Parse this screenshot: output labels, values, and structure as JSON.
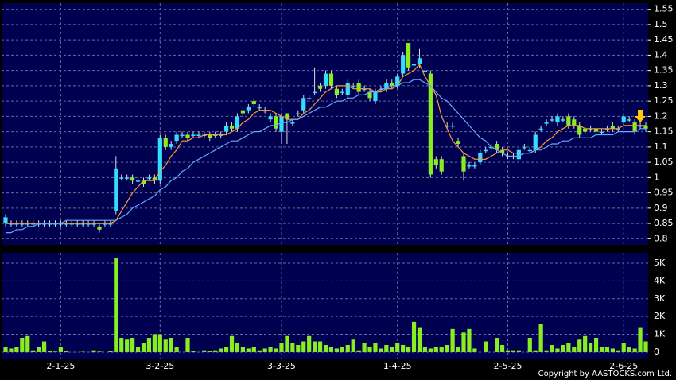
{
  "chart_data": {
    "type": "candlestick",
    "categories": [
      null,
      null,
      null,
      null,
      null,
      null,
      null,
      null,
      null,
      null,
      "2-1-25",
      null,
      null,
      null,
      null,
      null,
      null,
      null,
      null,
      null,
      null,
      null,
      null,
      null,
      null,
      null,
      null,
      null,
      "3-2-25",
      null,
      null,
      null,
      null,
      null,
      null,
      null,
      null,
      null,
      null,
      null,
      null,
      null,
      null,
      null,
      null,
      null,
      null,
      null,
      null,
      null,
      "3-3-25",
      null,
      null,
      null,
      null,
      null,
      null,
      null,
      null,
      null,
      null,
      null,
      null,
      null,
      null,
      null,
      null,
      null,
      null,
      null,
      null,
      "1-4-25",
      null,
      null,
      null,
      null,
      null,
      null,
      null,
      null,
      null,
      null,
      null,
      null,
      null,
      null,
      null,
      null,
      null,
      null,
      null,
      "2-5-25",
      null,
      null,
      null,
      null,
      null,
      null,
      null,
      null,
      null,
      null,
      null,
      null,
      null,
      null,
      null,
      null,
      null,
      null,
      null,
      null,
      "2-6-25",
      null,
      null,
      null,
      null
    ],
    "open": [
      0.85,
      0.85,
      0.85,
      0.85,
      0.85,
      0.85,
      0.85,
      0.85,
      0.85,
      0.85,
      0.85,
      0.85,
      0.85,
      0.85,
      0.85,
      0.85,
      0.85,
      0.84,
      0.85,
      0.85,
      0.89,
      1.0,
      1.0,
      1.0,
      0.99,
      0.99,
      1.0,
      1.0,
      0.99,
      1.13,
      1.1,
      1.12,
      1.14,
      1.14,
      1.14,
      1.14,
      1.14,
      1.14,
      1.14,
      1.14,
      1.15,
      1.17,
      1.16,
      1.22,
      1.22,
      1.25,
      1.23,
      1.22,
      1.19,
      1.2,
      1.15,
      1.21,
      1.18,
      1.21,
      1.22,
      1.26,
      1.28,
      1.3,
      1.3,
      1.34,
      1.29,
      1.28,
      1.27,
      1.3,
      1.31,
      1.29,
      1.28,
      1.25,
      1.29,
      1.29,
      1.31,
      1.3,
      1.34,
      1.44,
      1.37,
      1.37,
      1.35,
      1.34,
      1.06,
      1.06,
      1.17,
      1.17,
      1.12,
      1.07,
      1.04,
      1.04,
      1.05,
      1.09,
      1.1,
      1.11,
      1.09,
      1.07,
      1.07,
      1.06,
      1.1,
      1.09,
      1.09,
      1.16,
      1.18,
      1.19,
      1.18,
      1.19,
      1.2,
      1.19,
      1.17,
      1.16,
      1.16,
      1.16,
      1.15,
      1.16,
      1.17,
      1.16,
      1.18,
      1.19,
      1.18,
      1.17,
      1.17
    ],
    "high": [
      0.88,
      0.86,
      0.86,
      0.86,
      0.86,
      0.86,
      0.86,
      0.86,
      0.86,
      0.86,
      0.86,
      0.86,
      0.86,
      0.86,
      0.86,
      0.86,
      0.86,
      0.85,
      0.86,
      0.86,
      1.07,
      1.01,
      1.01,
      1.01,
      1.0,
      1.0,
      1.01,
      1.01,
      1.14,
      1.14,
      1.12,
      1.15,
      1.15,
      1.15,
      1.15,
      1.15,
      1.15,
      1.15,
      1.15,
      1.15,
      1.18,
      1.18,
      1.21,
      1.23,
      1.24,
      1.26,
      1.24,
      1.23,
      1.21,
      1.21,
      1.21,
      1.21,
      1.19,
      1.22,
      1.27,
      1.27,
      1.36,
      1.31,
      1.35,
      1.35,
      1.3,
      1.29,
      1.32,
      1.31,
      1.32,
      1.3,
      1.29,
      1.29,
      1.3,
      1.32,
      1.32,
      1.34,
      1.41,
      1.44,
      1.38,
      1.42,
      1.36,
      1.35,
      1.07,
      1.07,
      1.18,
      1.18,
      1.13,
      1.08,
      1.05,
      1.05,
      1.09,
      1.1,
      1.11,
      1.12,
      1.1,
      1.08,
      1.08,
      1.1,
      1.11,
      1.1,
      1.15,
      1.17,
      1.19,
      1.2,
      1.21,
      1.2,
      1.21,
      1.2,
      1.18,
      1.17,
      1.17,
      1.17,
      1.16,
      1.17,
      1.18,
      1.17,
      1.21,
      1.2,
      1.19,
      1.18,
      1.18
    ],
    "low": [
      0.84,
      0.84,
      0.84,
      0.84,
      0.84,
      0.84,
      0.84,
      0.84,
      0.84,
      0.84,
      0.84,
      0.84,
      0.84,
      0.84,
      0.84,
      0.84,
      0.84,
      0.82,
      0.84,
      0.84,
      0.88,
      0.99,
      0.99,
      0.98,
      0.98,
      0.97,
      0.99,
      0.98,
      0.98,
      1.09,
      1.09,
      1.11,
      1.13,
      1.12,
      1.13,
      1.13,
      1.13,
      1.12,
      1.13,
      1.13,
      1.14,
      1.15,
      1.15,
      1.2,
      1.21,
      1.23,
      1.22,
      1.21,
      1.18,
      1.15,
      1.11,
      1.11,
      1.17,
      1.2,
      1.21,
      1.25,
      1.27,
      1.28,
      1.29,
      1.29,
      1.26,
      1.27,
      1.26,
      1.29,
      1.27,
      1.28,
      1.25,
      1.24,
      1.28,
      1.28,
      1.29,
      1.29,
      1.33,
      1.35,
      1.36,
      1.36,
      1.34,
      1.0,
      1.03,
      1.01,
      1.16,
      1.16,
      1.1,
      0.99,
      1.03,
      1.03,
      1.04,
      1.08,
      1.09,
      1.08,
      1.07,
      1.06,
      1.06,
      1.05,
      1.09,
      1.08,
      1.08,
      1.15,
      1.17,
      1.18,
      1.17,
      1.18,
      1.16,
      1.16,
      1.13,
      1.14,
      1.15,
      1.14,
      1.14,
      1.15,
      1.15,
      1.15,
      1.17,
      1.18,
      1.14,
      1.16,
      1.15
    ],
    "close": [
      0.87,
      0.85,
      0.85,
      0.85,
      0.85,
      0.85,
      0.85,
      0.85,
      0.85,
      0.85,
      0.85,
      0.85,
      0.85,
      0.85,
      0.85,
      0.85,
      0.85,
      0.83,
      0.85,
      0.85,
      1.03,
      1.0,
      1.0,
      0.99,
      0.99,
      0.98,
      1.0,
      0.99,
      1.13,
      1.1,
      1.11,
      1.14,
      1.14,
      1.13,
      1.14,
      1.14,
      1.14,
      1.13,
      1.14,
      1.14,
      1.17,
      1.16,
      1.2,
      1.21,
      1.23,
      1.24,
      1.23,
      1.22,
      1.2,
      1.16,
      1.2,
      1.19,
      1.18,
      1.21,
      1.26,
      1.26,
      1.28,
      1.29,
      1.34,
      1.3,
      1.27,
      1.28,
      1.31,
      1.3,
      1.28,
      1.29,
      1.26,
      1.28,
      1.29,
      1.31,
      1.3,
      1.33,
      1.4,
      1.36,
      1.37,
      1.39,
      1.35,
      1.01,
      1.04,
      1.02,
      1.17,
      1.17,
      1.11,
      1.02,
      1.04,
      1.04,
      1.08,
      1.09,
      1.1,
      1.09,
      1.08,
      1.07,
      1.07,
      1.09,
      1.1,
      1.09,
      1.14,
      1.16,
      1.18,
      1.19,
      1.2,
      1.19,
      1.17,
      1.17,
      1.14,
      1.15,
      1.16,
      1.15,
      1.15,
      1.16,
      1.16,
      1.16,
      1.2,
      1.19,
      1.15,
      1.17,
      1.16
    ],
    "volume": [
      300,
      200,
      300,
      800,
      900,
      100,
      300,
      600,
      50,
      30,
      300,
      50,
      0,
      0,
      20,
      0,
      100,
      30,
      0,
      80,
      5300,
      800,
      700,
      800,
      300,
      500,
      800,
      1000,
      1000,
      700,
      800,
      300,
      0,
      800,
      50,
      0,
      100,
      50,
      100,
      200,
      300,
      900,
      500,
      300,
      200,
      300,
      100,
      200,
      300,
      200,
      500,
      900,
      500,
      400,
      600,
      900,
      600,
      600,
      400,
      300,
      200,
      300,
      400,
      700,
      100,
      500,
      300,
      500,
      200,
      400,
      300,
      500,
      400,
      300,
      1700,
      1400,
      300,
      200,
      300,
      300,
      400,
      1300,
      300,
      1100,
      1300,
      200,
      0,
      600,
      0,
      800,
      400,
      100,
      100,
      100,
      0,
      800,
      100,
      1600,
      100,
      400,
      200,
      400,
      500,
      300,
      700,
      900,
      500,
      800,
      300,
      300,
      200,
      100,
      500,
      300,
      200,
      1400,
      600
    ],
    "series": [
      {
        "color": "#ff9933",
        "values": [
          0.85,
          0.85,
          0.85,
          0.85,
          0.85,
          0.85,
          0.85,
          0.85,
          0.85,
          0.85,
          0.85,
          0.85,
          0.85,
          0.85,
          0.85,
          0.85,
          0.85,
          0.85,
          0.85,
          0.85,
          0.86,
          0.89,
          0.92,
          0.95,
          0.97,
          0.99,
          0.99,
          0.99,
          1.02,
          1.04,
          1.07,
          1.09,
          1.12,
          1.12,
          1.13,
          1.13,
          1.14,
          1.14,
          1.14,
          1.14,
          1.14,
          1.15,
          1.16,
          1.18,
          1.19,
          1.21,
          1.22,
          1.22,
          1.22,
          1.21,
          1.2,
          1.19,
          1.19,
          1.19,
          1.21,
          1.22,
          1.24,
          1.26,
          1.28,
          1.29,
          1.3,
          1.3,
          1.3,
          1.29,
          1.29,
          1.29,
          1.29,
          1.28,
          1.28,
          1.29,
          1.29,
          1.3,
          1.33,
          1.34,
          1.35,
          1.37,
          1.33,
          1.3,
          1.27,
          1.2,
          1.16,
          1.12,
          1.1,
          1.08,
          1.07,
          1.06,
          1.06,
          1.06,
          1.07,
          1.08,
          1.09,
          1.09,
          1.08,
          1.08,
          1.08,
          1.08,
          1.09,
          1.1,
          1.12,
          1.13,
          1.15,
          1.16,
          1.17,
          1.17,
          1.17,
          1.16,
          1.16,
          1.16,
          1.16,
          1.16,
          1.16,
          1.16,
          1.17,
          1.17,
          1.17,
          1.17,
          1.17
        ]
      },
      {
        "color": "#66aaff",
        "values": [
          0.82,
          0.82,
          0.83,
          0.83,
          0.84,
          0.84,
          0.85,
          0.85,
          0.85,
          0.85,
          0.85,
          0.86,
          0.86,
          0.86,
          0.86,
          0.86,
          0.86,
          0.86,
          0.86,
          0.86,
          0.86,
          0.87,
          0.88,
          0.9,
          0.91,
          0.92,
          0.93,
          0.94,
          0.96,
          0.97,
          0.99,
          1.0,
          1.02,
          1.03,
          1.05,
          1.06,
          1.07,
          1.08,
          1.09,
          1.1,
          1.11,
          1.12,
          1.12,
          1.13,
          1.14,
          1.15,
          1.15,
          1.16,
          1.17,
          1.17,
          1.18,
          1.18,
          1.19,
          1.19,
          1.2,
          1.21,
          1.22,
          1.23,
          1.23,
          1.24,
          1.25,
          1.25,
          1.26,
          1.26,
          1.27,
          1.27,
          1.28,
          1.28,
          1.29,
          1.29,
          1.3,
          1.3,
          1.31,
          1.31,
          1.32,
          1.32,
          1.31,
          1.3,
          1.28,
          1.26,
          1.25,
          1.23,
          1.21,
          1.19,
          1.17,
          1.15,
          1.13,
          1.12,
          1.1,
          1.09,
          1.08,
          1.07,
          1.07,
          1.07,
          1.08,
          1.08,
          1.09,
          1.09,
          1.1,
          1.11,
          1.11,
          1.12,
          1.12,
          1.13,
          1.13,
          1.13,
          1.13,
          1.14,
          1.14,
          1.14,
          1.14,
          1.15,
          1.15,
          1.15,
          1.15,
          1.16,
          1.16
        ]
      }
    ],
    "up_color": "#33ddff",
    "down_color": "#88ee22",
    "volume_color": "#88ee22",
    "ylim": [
      0.78,
      1.57
    ],
    "yticks": [
      0.8,
      0.85,
      0.9,
      0.95,
      1,
      1.05,
      1.1,
      1.15,
      1.2,
      1.25,
      1.3,
      1.35,
      1.4,
      1.45,
      1.5,
      1.55
    ],
    "volume_ylim": [
      -360,
      5580
    ],
    "volume_ticks": [
      0,
      {
        "value": 1000,
        "label": "1K"
      },
      {
        "value": 2000,
        "label": "2K"
      },
      {
        "value": 3000,
        "label": "3K"
      },
      {
        "value": 4000,
        "label": "4K"
      },
      {
        "value": 5000,
        "label": "5K"
      }
    ],
    "grid": true,
    "copyright": "Copyright by AASTOCKS.com Ltd."
  }
}
